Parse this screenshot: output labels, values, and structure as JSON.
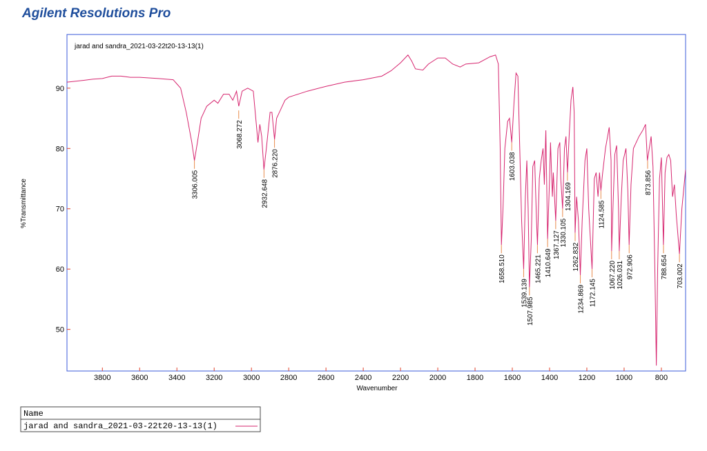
{
  "header": {
    "title": "Agilent Resolutions Pro"
  },
  "legend_table": {
    "header": "Name"
  },
  "chart_data": {
    "type": "line",
    "title": "jarad and sandra_2021-03-22t20-13-13(1)",
    "x_label": "Wavenumber",
    "y_label": "%Transmittance",
    "xlim": [
      3990,
      670
    ],
    "ylim": [
      43.1,
      98.9
    ],
    "xticks": [
      3800,
      3600,
      3400,
      3200,
      3000,
      2800,
      2600,
      2400,
      2200,
      2000,
      1800,
      1600,
      1400,
      1200,
      1000,
      800
    ],
    "yticks": [
      50,
      60,
      70,
      80,
      90
    ],
    "x": [
      3990,
      3900,
      3850,
      3800,
      3750,
      3700,
      3650,
      3600,
      3500,
      3420,
      3380,
      3350,
      3320,
      3306,
      3290,
      3270,
      3240,
      3200,
      3180,
      3150,
      3120,
      3100,
      3080,
      3068,
      3050,
      3020,
      2990,
      2965,
      2955,
      2945,
      2933,
      2920,
      2900,
      2890,
      2876,
      2865,
      2850,
      2820,
      2800,
      2700,
      2600,
      2500,
      2400,
      2300,
      2250,
      2200,
      2160,
      2140,
      2120,
      2080,
      2050,
      2000,
      1960,
      1920,
      1880,
      1850,
      1780,
      1720,
      1690,
      1675,
      1665,
      1658.5,
      1650,
      1640,
      1625,
      1615,
      1603,
      1590,
      1580,
      1570,
      1560,
      1550,
      1539,
      1530,
      1522,
      1515,
      1508,
      1498,
      1490,
      1480,
      1470,
      1465,
      1455,
      1445,
      1435,
      1428,
      1420,
      1410.6,
      1400,
      1395,
      1385,
      1380,
      1367,
      1355,
      1345,
      1340,
      1330,
      1320,
      1312,
      1304,
      1295,
      1285,
      1275,
      1268,
      1263,
      1255,
      1245,
      1235,
      1225,
      1210,
      1200,
      1190,
      1172,
      1160,
      1150,
      1140,
      1132,
      1124.6,
      1115,
      1100,
      1080,
      1070,
      1067,
      1060,
      1050,
      1040,
      1030,
      1026,
      1015,
      1005,
      990,
      980,
      973,
      963,
      950,
      920,
      900,
      885,
      875,
      865,
      855,
      845,
      835,
      827,
      820,
      810,
      800,
      795,
      789,
      780,
      770,
      760,
      750,
      740,
      730,
      720,
      703,
      690,
      670
    ],
    "series": [
      {
        "name": "jarad and sandra_2021-03-22t20-13-13(1)",
        "color": "#d6246e",
        "values": [
          91.0,
          91.3,
          91.5,
          91.6,
          92.0,
          92.0,
          91.8,
          91.8,
          91.6,
          91.4,
          90.0,
          86,
          81,
          78,
          81,
          85,
          87,
          88,
          87.5,
          89,
          89,
          88,
          89.5,
          87,
          89.5,
          90,
          89.5,
          81,
          84,
          82,
          76.5,
          80,
          86,
          86,
          81.5,
          85,
          86,
          88,
          88.5,
          89.5,
          90.3,
          91,
          91.4,
          92,
          92.9,
          94.2,
          95.5,
          94.5,
          93.2,
          93,
          94,
          95,
          95,
          94,
          93.5,
          94,
          94.2,
          95.2,
          95.5,
          94,
          80,
          64,
          70,
          80,
          84.5,
          85,
          81,
          88,
          92.5,
          92,
          80,
          68,
          60,
          72,
          78,
          70,
          57,
          65,
          77,
          78,
          68,
          64,
          75,
          78,
          80,
          74,
          83,
          65,
          75,
          81,
          72,
          76,
          68,
          80,
          81,
          75,
          70,
          80,
          82,
          76,
          82,
          88,
          90.2,
          86,
          66,
          72,
          68,
          59,
          68,
          78,
          80,
          70,
          60,
          75,
          76,
          72,
          76,
          73,
          76,
          80,
          83.5,
          78,
          63,
          70,
          79,
          80.5,
          70,
          63,
          72,
          78,
          80,
          73,
          64,
          74,
          80,
          82,
          83,
          84,
          78,
          80,
          82,
          77,
          60,
          44,
          60,
          75,
          78.5,
          72,
          64,
          76,
          78.5,
          79,
          78,
          72,
          74,
          69,
          62.5,
          70,
          76.5
        ]
      }
    ],
    "peaks": {
      "x": [
        3306.005,
        3068.272,
        2932.648,
        2876.22,
        1658.51,
        1603.038,
        1539.139,
        1507.985,
        1465.221,
        1410.649,
        1367.127,
        1330.105,
        1304.169,
        1262.832,
        1234.869,
        1172.145,
        1124.585,
        1067.22,
        1026.031,
        972.906,
        873.856,
        788.654,
        703.002
      ],
      "values": [
        78,
        86.3,
        76.5,
        81.5,
        64,
        81,
        60,
        57,
        64,
        65,
        68,
        70,
        76,
        66,
        59,
        60,
        73,
        63,
        63,
        64,
        78,
        64,
        62.5
      ],
      "value_labels": [
        "3306.005",
        "3068.272",
        "2932.648",
        "2876.220",
        "1658.510",
        "1603.038",
        "1539.139",
        "1507.985",
        "1465.221",
        "1410.649",
        "1367.127",
        "1330.105",
        "1304.169",
        "1262.832",
        "1234.869",
        "1172.145",
        "1124.585",
        "1067.220",
        "1026.031",
        "972.906",
        "873.856",
        "788.654",
        "703.002"
      ]
    },
    "grid": false
  }
}
